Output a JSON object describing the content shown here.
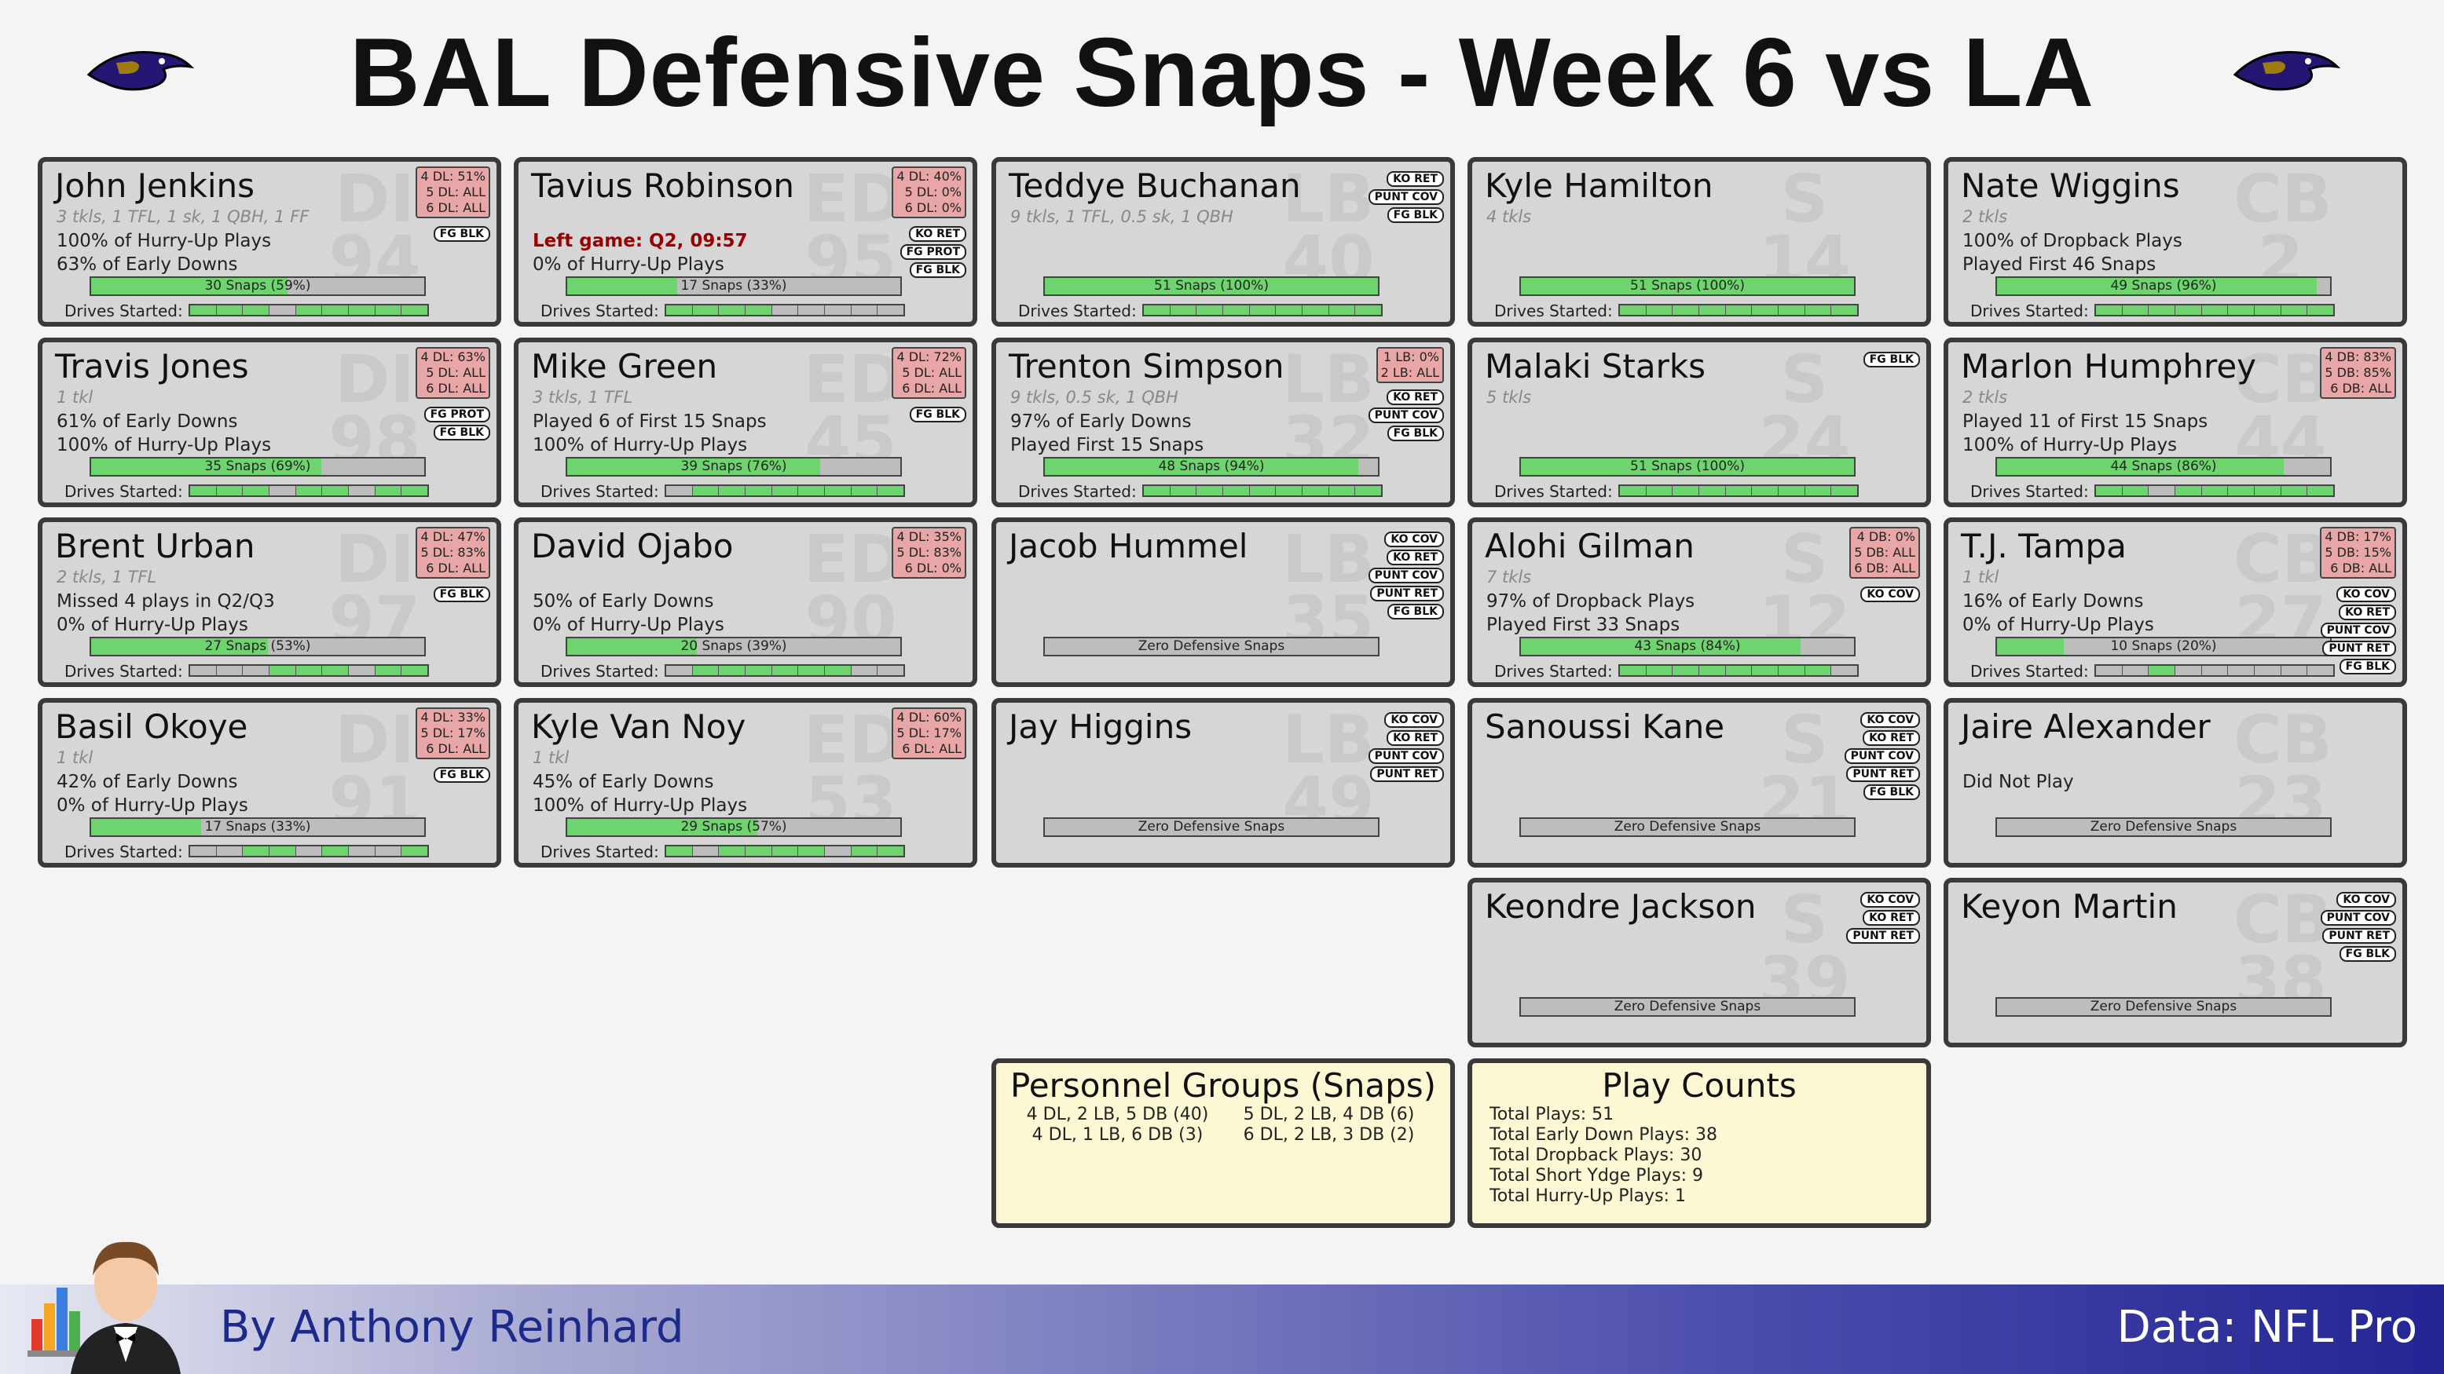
{
  "title": "BAL Defensive Snaps - Week 6 vs LA",
  "colors": {
    "bar_fill": "#6ed56e",
    "bar_empty": "#bdbdbd",
    "card_bg": "#d6d6d6",
    "pos_bg": "#e8a6a6",
    "info_bg": "#fdf8d4",
    "left_game": "#9b0000"
  },
  "players": [
    {
      "name": "John Jenkins",
      "num": "94",
      "pos_abbr": "DI",
      "stats": "3 tkls, 1 TFL, 1 sk, 1 QBH, 1 FF",
      "line1": "100% of Hurry-Up Plays",
      "line2": "63% of Early Downs",
      "snaps": "30 Snaps (59%)",
      "pct": 59,
      "drives": [
        1,
        1,
        1,
        0,
        1,
        1,
        1,
        1,
        1
      ],
      "pos": [
        "4 DL: 51%",
        "5 DL: ALL",
        "6 DL: ALL"
      ],
      "tags": [
        "FG BLK"
      ]
    },
    {
      "name": "Travis Jones",
      "num": "98",
      "pos_abbr": "DI",
      "stats": "1 tkl",
      "line1": "61% of Early Downs",
      "line2": "100% of Hurry-Up Plays",
      "snaps": "35 Snaps (69%)",
      "pct": 69,
      "drives": [
        1,
        1,
        1,
        0,
        1,
        1,
        0,
        1,
        1
      ],
      "pos": [
        "4 DL: 63%",
        "5 DL: ALL",
        "6 DL: ALL"
      ],
      "tags": [
        "FG PROT",
        "FG BLK"
      ]
    },
    {
      "name": "Brent Urban",
      "num": "97",
      "pos_abbr": "DI",
      "stats": "2 tkls, 1 TFL",
      "line1": "Missed 4 plays in Q2/Q3",
      "line2": "0% of Hurry-Up Plays",
      "snaps": "27 Snaps (53%)",
      "pct": 53,
      "drives": [
        0,
        0,
        0,
        1,
        1,
        1,
        0,
        1,
        1
      ],
      "pos": [
        "4 DL: 47%",
        "5 DL: 83%",
        "6 DL: ALL"
      ],
      "tags": [
        "FG BLK"
      ]
    },
    {
      "name": "Basil Okoye",
      "num": "91",
      "pos_abbr": "DI",
      "stats": "1 tkl",
      "line1": "42% of Early Downs",
      "line2": "0% of Hurry-Up Plays",
      "snaps": "17 Snaps (33%)",
      "pct": 33,
      "drives": [
        0,
        0,
        1,
        1,
        0,
        1,
        0,
        0,
        1
      ],
      "pos": [
        "4 DL: 33%",
        "5 DL: 17%",
        "6 DL: ALL"
      ],
      "tags": [
        "FG BLK"
      ]
    },
    {
      "name": "Tavius Robinson",
      "num": "95",
      "pos_abbr": "ED",
      "stats": "",
      "line1": "Left game: Q2, 09:57",
      "line1_left": true,
      "line2": "0% of Hurry-Up Plays",
      "snaps": "17 Snaps (33%)",
      "pct": 33,
      "drives": [
        1,
        1,
        1,
        1,
        0,
        0,
        0,
        0,
        0
      ],
      "pos": [
        "4 DL: 40%",
        "5 DL: 0%",
        "6 DL: 0%"
      ],
      "tags": [
        "KO RET",
        "FG PROT",
        "FG BLK"
      ]
    },
    {
      "name": "Mike Green",
      "num": "45",
      "pos_abbr": "ED",
      "stats": "3 tkls, 1 TFL",
      "line1": "Played 6 of First 15 Snaps",
      "line2": "100% of Hurry-Up Plays",
      "snaps": "39 Snaps (76%)",
      "pct": 76,
      "drives": [
        0,
        1,
        1,
        1,
        1,
        1,
        1,
        1,
        1
      ],
      "pos": [
        "4 DL: 72%",
        "5 DL: ALL",
        "6 DL: ALL"
      ],
      "tags": [
        "FG BLK"
      ]
    },
    {
      "name": "David Ojabo",
      "num": "90",
      "pos_abbr": "ED",
      "stats": "",
      "line1": "50% of Early Downs",
      "line2": "0% of Hurry-Up Plays",
      "snaps": "20 Snaps (39%)",
      "pct": 39,
      "drives": [
        0,
        1,
        1,
        1,
        1,
        1,
        1,
        0,
        0
      ],
      "pos": [
        "4 DL: 35%",
        "5 DL: 83%",
        "6 DL: 0%"
      ],
      "tags": []
    },
    {
      "name": "Kyle Van Noy",
      "num": "53",
      "pos_abbr": "ED",
      "stats": "1 tkl",
      "line1": "45% of Early Downs",
      "line2": "100% of Hurry-Up Plays",
      "snaps": "29 Snaps (57%)",
      "pct": 57,
      "drives": [
        1,
        0,
        1,
        1,
        1,
        1,
        0,
        1,
        1
      ],
      "pos": [
        "4 DL: 60%",
        "5 DL: 17%",
        "6 DL: ALL"
      ],
      "tags": []
    },
    {
      "name": "Teddye Buchanan",
      "num": "40",
      "pos_abbr": "LB",
      "stats": "9 tkls, 1 TFL, 0.5 sk, 1 QBH",
      "line1": "",
      "line2": "",
      "snaps": "51 Snaps (100%)",
      "pct": 100,
      "drives": [
        1,
        1,
        1,
        1,
        1,
        1,
        1,
        1,
        1
      ],
      "pos": [],
      "tags": [
        "KO RET",
        "PUNT COV",
        "FG BLK"
      ]
    },
    {
      "name": "Trenton Simpson",
      "num": "32",
      "pos_abbr": "LB",
      "stats": "9 tkls, 0.5 sk, 1 QBH",
      "line1": "97% of Early Downs",
      "line2": "Played First 15 Snaps",
      "snaps": "48 Snaps (94%)",
      "pct": 94,
      "drives": [
        1,
        1,
        1,
        1,
        1,
        1,
        1,
        1,
        1
      ],
      "pos": [
        "1 LB: 0%",
        "2 LB: ALL"
      ],
      "tags": [
        "KO RET",
        "PUNT COV",
        "FG BLK"
      ]
    },
    {
      "name": "Jacob Hummel",
      "num": "35",
      "pos_abbr": "LB",
      "stats": "",
      "line1": "",
      "line2": "",
      "snaps": "Zero Defensive Snaps",
      "pct": 0,
      "drives": null,
      "pos": [],
      "tags": [
        "KO COV",
        "KO RET",
        "PUNT COV",
        "PUNT RET",
        "FG BLK"
      ]
    },
    {
      "name": "Jay Higgins",
      "num": "49",
      "pos_abbr": "LB",
      "stats": "",
      "line1": "",
      "line2": "",
      "snaps": "Zero Defensive Snaps",
      "pct": 0,
      "drives": null,
      "pos": [],
      "tags": [
        "KO COV",
        "KO RET",
        "PUNT COV",
        "PUNT RET"
      ]
    },
    {
      "name": "Kyle Hamilton",
      "num": "14",
      "pos_abbr": "S",
      "stats": "4 tkls",
      "line1": "",
      "line2": "",
      "snaps": "51 Snaps (100%)",
      "pct": 100,
      "drives": [
        1,
        1,
        1,
        1,
        1,
        1,
        1,
        1,
        1
      ],
      "pos": [],
      "tags": []
    },
    {
      "name": "Malaki Starks",
      "num": "24",
      "pos_abbr": "S",
      "stats": "5 tkls",
      "line1": "",
      "line2": "",
      "snaps": "51 Snaps (100%)",
      "pct": 100,
      "drives": [
        1,
        1,
        1,
        1,
        1,
        1,
        1,
        1,
        1
      ],
      "pos": [],
      "tags": [
        "FG BLK"
      ]
    },
    {
      "name": "Alohi Gilman",
      "num": "12",
      "pos_abbr": "S",
      "stats": "7 tkls",
      "line1": "97% of Dropback Plays",
      "line2": "Played First 33 Snaps",
      "snaps": "43 Snaps (84%)",
      "pct": 84,
      "drives": [
        1,
        1,
        1,
        1,
        1,
        1,
        1,
        1,
        0
      ],
      "pos": [
        "4 DB: 0%",
        "5 DB: ALL",
        "6 DB: ALL"
      ],
      "tags": [
        "KO COV"
      ]
    },
    {
      "name": "Sanoussi Kane",
      "num": "21",
      "pos_abbr": "S",
      "stats": "",
      "line1": "",
      "line2": "",
      "snaps": "Zero Defensive Snaps",
      "pct": 0,
      "drives": null,
      "pos": [],
      "tags": [
        "KO COV",
        "KO RET",
        "PUNT COV",
        "PUNT RET",
        "FG BLK"
      ]
    },
    {
      "name": "Keondre Jackson",
      "num": "39",
      "pos_abbr": "S",
      "stats": "",
      "line1": "",
      "line2": "",
      "snaps": "Zero Defensive Snaps",
      "pct": 0,
      "drives": null,
      "pos": [],
      "tags": [
        "KO COV",
        "KO RET",
        "PUNT RET"
      ]
    },
    {
      "name": "Nate Wiggins",
      "num": "2",
      "pos_abbr": "CB",
      "stats": "2 tkls",
      "line1": "100% of Dropback Plays",
      "line2": "Played First 46 Snaps",
      "snaps": "49 Snaps (96%)",
      "pct": 96,
      "drives": [
        1,
        1,
        1,
        1,
        1,
        1,
        1,
        1,
        1
      ],
      "pos": [],
      "tags": []
    },
    {
      "name": "Marlon Humphrey",
      "num": "44",
      "pos_abbr": "CB",
      "stats": "2 tkls",
      "line1": "Played 11 of First 15 Snaps",
      "line2": "100% of Hurry-Up Plays",
      "snaps": "44 Snaps (86%)",
      "pct": 86,
      "drives": [
        1,
        1,
        0,
        1,
        1,
        1,
        1,
        1,
        1
      ],
      "pos": [
        "4 DB: 83%",
        "5 DB: 85%",
        "6 DB: ALL"
      ],
      "tags": []
    },
    {
      "name": "T.J. Tampa",
      "num": "27",
      "pos_abbr": "CB",
      "stats": "1 tkl",
      "line1": "16% of Early Downs",
      "line2": "0% of Hurry-Up Plays",
      "snaps": "10 Snaps (20%)",
      "pct": 20,
      "drives": [
        0,
        0,
        1,
        0,
        0,
        0,
        0,
        0,
        0
      ],
      "pos": [
        "4 DB: 17%",
        "5 DB: 15%",
        "6 DB: ALL"
      ],
      "tags": [
        "KO COV",
        "KO RET",
        "PUNT COV",
        "PUNT RET",
        "FG BLK"
      ]
    },
    {
      "name": "Jaire Alexander",
      "num": "23",
      "pos_abbr": "CB",
      "stats": "",
      "line1": "Did Not Play",
      "line2": "",
      "snaps": "Zero Defensive Snaps",
      "pct": 0,
      "drives": null,
      "pos": [],
      "tags": []
    },
    {
      "name": "Keyon Martin",
      "num": "38",
      "pos_abbr": "CB",
      "stats": "",
      "line1": "",
      "line2": "",
      "snaps": "Zero Defensive Snaps",
      "pct": 0,
      "drives": null,
      "pos": [],
      "tags": [
        "KO COV",
        "PUNT COV",
        "PUNT RET",
        "FG BLK"
      ]
    }
  ],
  "drives_label": "Drives Started:",
  "personnel": {
    "title": "Personnel Groups (Snaps)",
    "items": [
      "4 DL, 2 LB, 5 DB (40)",
      "5 DL, 2 LB, 4 DB (6)",
      "4 DL, 1 LB, 6 DB (3)",
      "6 DL, 2 LB, 3 DB (2)"
    ]
  },
  "play_counts": {
    "title": "Play Counts",
    "items": [
      "Total Plays: 51",
      "Total Early Down Plays: 38",
      "Total Dropback Plays: 30",
      "Total Short Ydge Plays: 9",
      "Total Hurry-Up Plays: 1"
    ]
  },
  "footer": {
    "byline": "By Anthony Reinhard",
    "source": "Data: NFL Pro"
  },
  "icons": [
    "ravens-logo-icon",
    "mascot-icon"
  ]
}
